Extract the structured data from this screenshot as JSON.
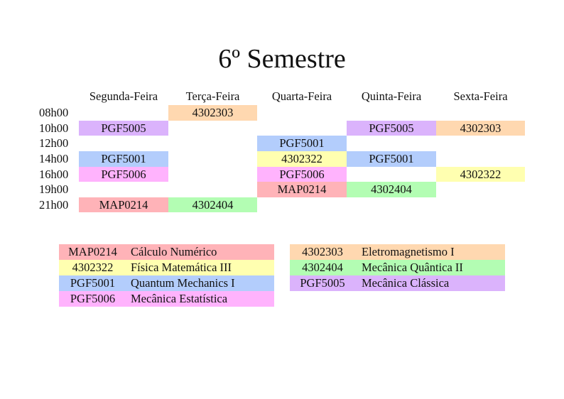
{
  "title": "6º Semestre",
  "days": [
    "Segunda-Feira",
    "Terça-Feira",
    "Quarta-Feira",
    "Quinta-Feira",
    "Sexta-Feira"
  ],
  "times": [
    "08h00",
    "10h00",
    "12h00",
    "14h00",
    "16h00",
    "19h00",
    "21h00"
  ],
  "schedule": [
    [
      "",
      "4302303",
      "",
      "",
      ""
    ],
    [
      "PGF5005",
      "",
      "",
      "PGF5005",
      "4302303"
    ],
    [
      "",
      "",
      "PGF5001",
      "",
      ""
    ],
    [
      "PGF5001",
      "",
      "4302322",
      "PGF5001",
      ""
    ],
    [
      "PGF5006",
      "",
      "PGF5006",
      "",
      "4302322"
    ],
    [
      "",
      "",
      "MAP0214",
      "4302404",
      ""
    ],
    [
      "MAP0214",
      "4302404",
      "",
      "",
      ""
    ]
  ],
  "colors": {
    "MAP0214": "#ffb3b8",
    "4302322": "#ffffb0",
    "PGF5001": "#b3cdfc",
    "PGF5006": "#ffb3fd",
    "4302303": "#ffd8b0",
    "4302404": "#b3fdb3",
    "PGF5005": "#dbb3fc"
  },
  "legend_left": [
    {
      "code": "MAP0214",
      "name": "Cálculo Numérico"
    },
    {
      "code": "4302322",
      "name": "Física Matemática III"
    },
    {
      "code": "PGF5001",
      "name": "Quantum Mechanics I"
    },
    {
      "code": "PGF5006",
      "name": "Mecânica Estatística"
    }
  ],
  "legend_right": [
    {
      "code": "4302303",
      "name": "Eletromagnetismo I"
    },
    {
      "code": "4302404",
      "name": "Mecânica Quântica II"
    },
    {
      "code": "PGF5005",
      "name": "Mecânica Clássica"
    }
  ]
}
